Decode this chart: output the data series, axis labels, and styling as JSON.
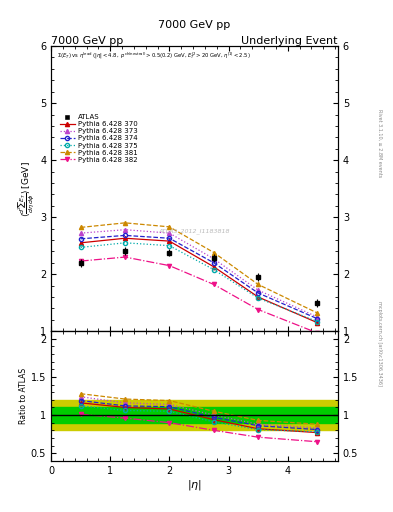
{
  "title_left": "7000 GeV pp",
  "title_right": "Underlying Event",
  "watermark": "ATLAS_2012_I1183818",
  "eta": [
    0.5,
    1.25,
    2.0,
    2.75,
    3.5,
    4.5
  ],
  "atlas_y": [
    2.2,
    2.4,
    2.38,
    2.28,
    1.95,
    1.5
  ],
  "atlas_yerr": [
    0.07,
    0.07,
    0.07,
    0.07,
    0.07,
    0.07
  ],
  "py370_y": [
    2.55,
    2.63,
    2.58,
    2.13,
    1.6,
    1.15
  ],
  "py373_y": [
    2.72,
    2.78,
    2.72,
    2.27,
    1.72,
    1.25
  ],
  "py374_y": [
    2.62,
    2.68,
    2.63,
    2.2,
    1.67,
    1.22
  ],
  "py375_y": [
    2.47,
    2.55,
    2.5,
    2.08,
    1.58,
    1.17
  ],
  "py381_y": [
    2.82,
    2.9,
    2.83,
    2.38,
    1.82,
    1.32
  ],
  "py382_y": [
    2.23,
    2.3,
    2.15,
    1.82,
    1.38,
    0.97
  ],
  "py370_ratio": [
    1.16,
    1.1,
    1.08,
    0.94,
    0.82,
    0.77
  ],
  "py373_ratio": [
    1.24,
    1.16,
    1.14,
    1.0,
    0.88,
    0.83
  ],
  "py374_ratio": [
    1.19,
    1.12,
    1.11,
    0.97,
    0.86,
    0.81
  ],
  "py375_ratio": [
    1.12,
    1.06,
    1.05,
    0.91,
    0.81,
    0.78
  ],
  "py381_ratio": [
    1.28,
    1.21,
    1.19,
    1.05,
    0.93,
    0.88
  ],
  "py382_ratio": [
    1.01,
    0.96,
    0.9,
    0.8,
    0.71,
    0.65
  ],
  "colors": {
    "py370": "#cc0000",
    "py373": "#bb44cc",
    "py374": "#2222cc",
    "py375": "#00aaaa",
    "py381": "#cc8800",
    "py382": "#ee1188"
  },
  "atlas_color": "#000000",
  "green_band_color": "#00cc00",
  "yellow_band_color": "#cccc00",
  "ylim_main": [
    1.0,
    6.0
  ],
  "ylim_ratio": [
    0.4,
    2.1
  ],
  "xlim": [
    0.0,
    4.85
  ],
  "yticks_main": [
    1,
    2,
    3,
    4,
    5,
    6
  ],
  "yticks_ratio": [
    0.5,
    1.0,
    1.5,
    2.0
  ]
}
